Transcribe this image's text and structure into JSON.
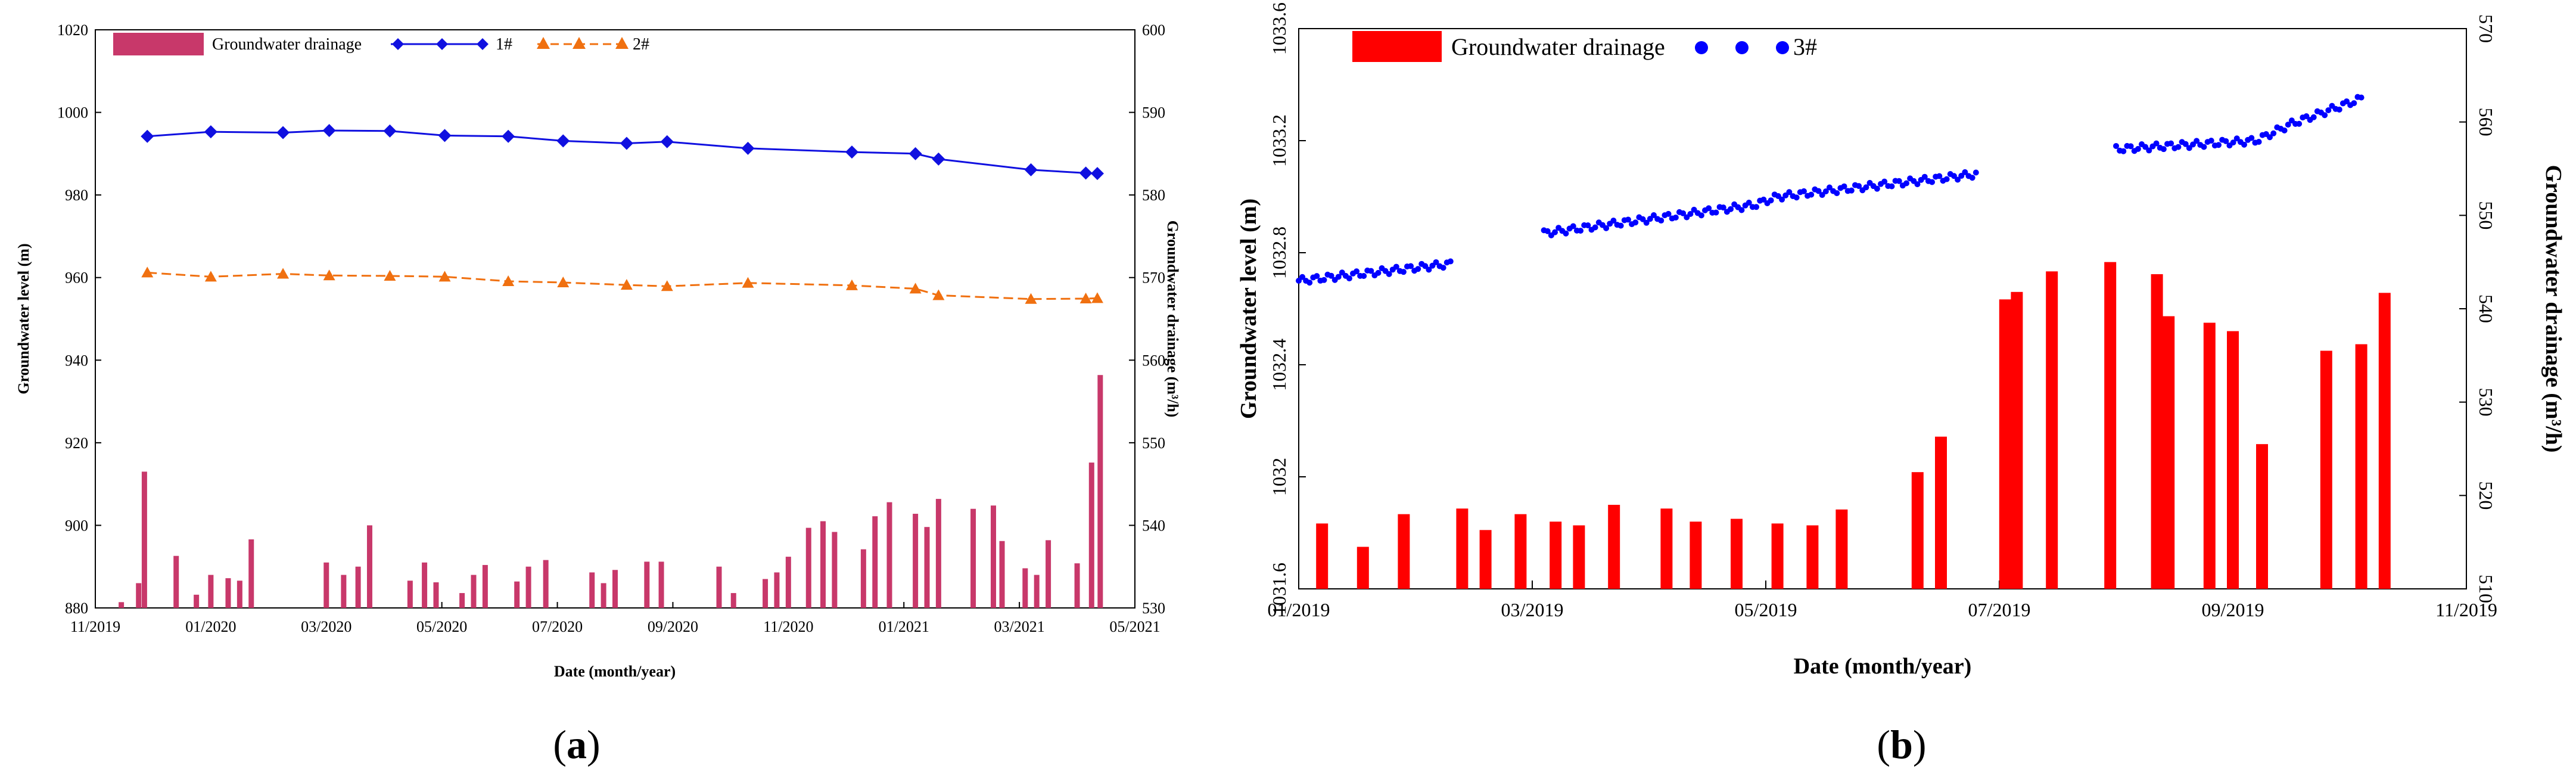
{
  "chart_data": [
    {
      "panel_label": "(a)",
      "panel_letter": "a",
      "type": "bar+line",
      "xlabel": "Date (month/year)",
      "ylabel_left": "Groundwater level (m)",
      "ylabel_right": "Groundwater drainage (m³/h)",
      "x_range": [
        0,
        18
      ],
      "x_ticks": [
        "11/2019",
        "01/2020",
        "03/2020",
        "05/2020",
        "07/2020",
        "09/2020",
        "11/2020",
        "01/2021",
        "03/2021",
        "05/2021"
      ],
      "ylim_left": [
        880,
        1020
      ],
      "y_ticks_left": [
        "880",
        "900",
        "920",
        "940",
        "960",
        "980",
        "1000",
        "1020"
      ],
      "ylim_right": [
        530,
        600
      ],
      "y_ticks_right": [
        "530",
        "540",
        "550",
        "560",
        "570",
        "580",
        "590",
        "600"
      ],
      "legend": [
        "Groundwater drainage",
        "1#",
        "2#"
      ],
      "series": [
        {
          "name": "1#",
          "axis": "left",
          "style": "line-diamond",
          "color": "#1010E0",
          "x": [
            0.9,
            2.0,
            3.25,
            4.05,
            5.1,
            6.05,
            7.15,
            8.1,
            9.2,
            9.9,
            11.3,
            13.1,
            14.2,
            14.6,
            16.2,
            17.15,
            17.35
          ],
          "y": [
            994.2,
            995.3,
            995.1,
            995.6,
            995.5,
            994.4,
            994.2,
            993.1,
            992.5,
            992.9,
            991.3,
            990.4,
            990.0,
            988.7,
            986.1,
            985.3,
            985.2
          ]
        },
        {
          "name": "2#",
          "axis": "left",
          "style": "dash-triangle",
          "color": "#F07010",
          "x": [
            0.9,
            2.0,
            3.25,
            4.05,
            5.1,
            6.05,
            7.15,
            8.1,
            9.2,
            9.9,
            11.3,
            13.1,
            14.2,
            14.6,
            16.2,
            17.15,
            17.35
          ],
          "y": [
            961.2,
            960.2,
            960.9,
            960.5,
            960.4,
            960.2,
            959.1,
            958.8,
            958.2,
            957.9,
            958.7,
            958.1,
            957.3,
            955.7,
            954.8,
            954.9,
            955.0
          ]
        },
        {
          "name": "Groundwater drainage",
          "axis": "right",
          "style": "bar",
          "color": "#C8386A",
          "x": [
            0.45,
            0.75,
            0.85,
            1.4,
            1.75,
            2.0,
            2.3,
            2.5,
            2.7,
            4.0,
            4.3,
            4.55,
            4.75,
            5.45,
            5.7,
            5.9,
            6.35,
            6.55,
            6.75,
            7.3,
            7.5,
            7.8,
            8.6,
            8.8,
            9.0,
            9.55,
            9.8,
            10.8,
            11.05,
            11.6,
            11.8,
            12.0,
            12.35,
            12.6,
            12.8,
            13.3,
            13.5,
            13.75,
            14.2,
            14.4,
            14.6,
            15.2,
            15.55,
            15.7,
            16.1,
            16.3,
            16.5,
            17.0,
            17.25,
            17.4
          ],
          "y": [
            530.7,
            533.0,
            546.5,
            536.3,
            531.6,
            534.0,
            533.6,
            533.3,
            538.3,
            535.5,
            534.0,
            535.0,
            540.0,
            533.3,
            535.5,
            533.1,
            531.8,
            534.0,
            535.2,
            533.2,
            535.0,
            535.8,
            534.3,
            533.0,
            534.6,
            535.6,
            535.6,
            535.0,
            531.8,
            533.5,
            534.3,
            536.2,
            539.7,
            540.5,
            539.2,
            537.1,
            541.1,
            542.8,
            541.4,
            539.8,
            543.2,
            542.0,
            542.4,
            538.1,
            534.8,
            534.0,
            538.2,
            535.4,
            547.6,
            558.2
          ]
        }
      ]
    },
    {
      "panel_label": "(b)",
      "panel_letter": "b",
      "type": "bar+scatter",
      "xlabel": "Date (month/year)",
      "ylabel_left": "Groundwater level (m)",
      "ylabel_right": "Groundwater drainage (m³/h)",
      "x_range": [
        0,
        10
      ],
      "x_ticks": [
        "01/2019",
        "03/2019",
        "05/2019",
        "07/2019",
        "09/2019",
        "11/2019"
      ],
      "ylim_left": [
        1031.6,
        1033.6
      ],
      "y_ticks_left": [
        "1031.6",
        "1032",
        "1032.4",
        "1032.8",
        "1033.2",
        "1033.6"
      ],
      "ylim_right": [
        510,
        570
      ],
      "y_ticks_right": [
        "510",
        "520",
        "530",
        "540",
        "550",
        "560",
        "570"
      ],
      "legend": [
        "Groundwater drainage",
        "3#"
      ],
      "series": [
        {
          "name": "Groundwater drainage",
          "axis": "right",
          "style": "bar",
          "color": "#FF0000",
          "x": [
            0.2,
            0.55,
            0.9,
            1.4,
            1.6,
            1.9,
            2.2,
            2.4,
            2.7,
            3.15,
            3.4,
            3.75,
            4.1,
            4.4,
            4.65,
            5.3,
            5.5,
            6.05,
            6.15,
            6.45,
            6.95,
            7.35,
            7.45,
            7.8,
            8.0,
            8.25,
            8.8,
            9.1,
            9.3
          ],
          "y": [
            517.0,
            514.5,
            518.0,
            518.6,
            516.3,
            518.0,
            517.2,
            516.8,
            519.0,
            518.6,
            517.2,
            517.5,
            517.0,
            516.8,
            518.5,
            522.5,
            526.3,
            541.0,
            541.8,
            544.0,
            545.0,
            543.7,
            539.2,
            538.5,
            537.6,
            525.5,
            535.5,
            536.2,
            541.7
          ]
        },
        {
          "name": "3#",
          "axis": "left",
          "style": "scatter",
          "color": "#0000FF",
          "x": [
            0.0,
            1.3,
            2.1,
            3.9,
            4.1,
            5.8,
            7.0,
            8.2,
            8.5,
            9.1
          ],
          "y": [
            1032.7,
            1032.76,
            1032.87,
            1032.97,
            1033.0,
            1033.08,
            1033.17,
            1033.2,
            1033.26,
            1033.35
          ]
        }
      ]
    }
  ]
}
